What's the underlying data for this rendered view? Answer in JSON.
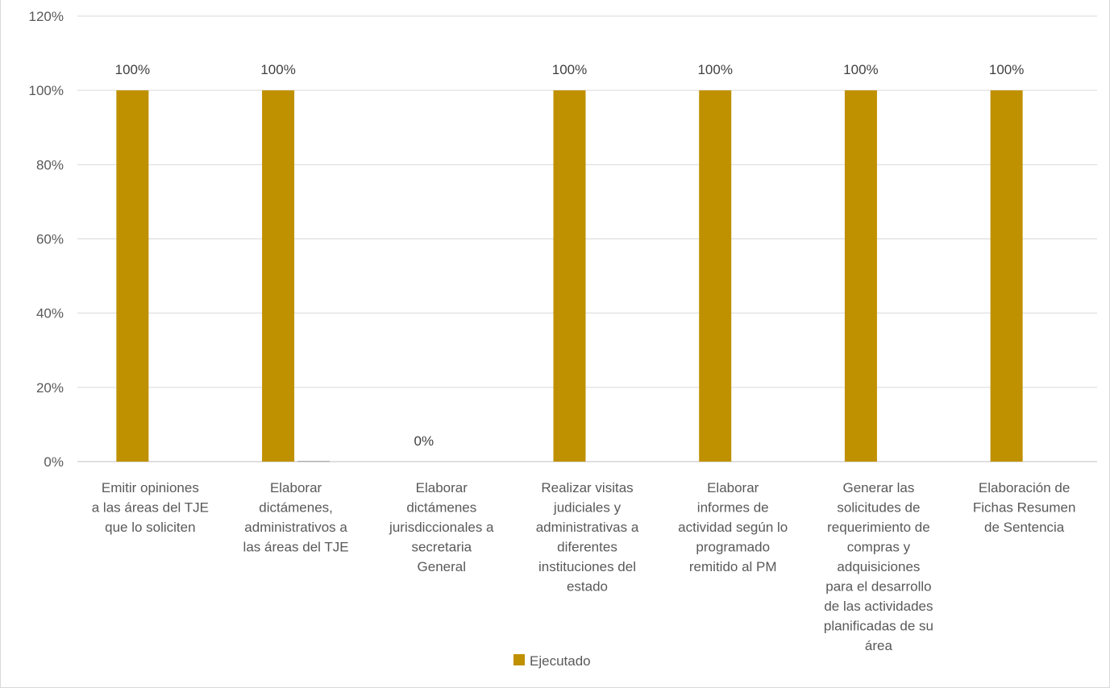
{
  "chart_data": {
    "type": "bar",
    "title": "",
    "xlabel": "",
    "ylabel": "",
    "ylim": [
      0,
      1.2
    ],
    "y_ticks": [
      0,
      0.2,
      0.4,
      0.6,
      0.8,
      1.0,
      1.2
    ],
    "y_tick_labels": [
      "0%",
      "20%",
      "40%",
      "60%",
      "80%",
      "100%",
      "120%"
    ],
    "grid": true,
    "legend_position": "bottom",
    "categories": [
      [
        "Emitir opiniones",
        "a las áreas del TJE",
        "que lo soliciten"
      ],
      [
        "Elaborar",
        "dictámenes,",
        "administrativos a",
        "las áreas del TJE"
      ],
      [
        "Elaborar",
        "dictámenes",
        "jurisdiccionales a",
        "secretaria",
        "General"
      ],
      [
        "Realizar visitas",
        "judiciales y",
        "administrativas a",
        "diferentes",
        "instituciones del",
        "estado"
      ],
      [
        "Elaborar",
        "informes de",
        "actividad según lo",
        "programado",
        "remitido al PM"
      ],
      [
        "Generar las",
        "solicitudes de",
        "requerimiento de",
        "compras y",
        "adquisiciones",
        "para el desarrollo",
        "de las actividades",
        "planificadas de su",
        "área"
      ],
      [
        "Elaboración de",
        "Fichas Resumen",
        "de Sentencia"
      ]
    ],
    "series": [
      {
        "name": "Ejecutado",
        "color": "#bf9000",
        "values": [
          1.0,
          1.0,
          0.0,
          1.0,
          1.0,
          1.0,
          1.0
        ],
        "data_labels": [
          "100%",
          "100%",
          "0%",
          "100%",
          "100%",
          "100%",
          "100%"
        ]
      },
      {
        "name": "",
        "color": "#a6a6a6",
        "values": [
          0,
          0.002,
          0,
          0,
          0,
          0,
          0
        ],
        "data_labels": []
      }
    ]
  }
}
